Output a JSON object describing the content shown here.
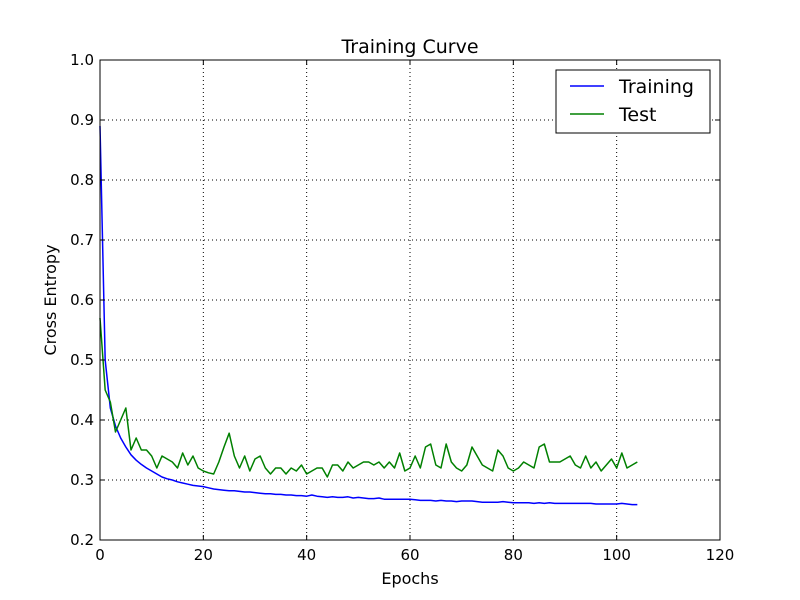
{
  "chart_data": {
    "type": "line",
    "title": "Training Curve",
    "xlabel": "Epochs",
    "ylabel": "Cross Entropy",
    "xlim": [
      0,
      120
    ],
    "ylim": [
      0.2,
      1.0
    ],
    "xticks": [
      0,
      20,
      40,
      60,
      80,
      100,
      120
    ],
    "yticks": [
      0.2,
      0.3,
      0.4,
      0.5,
      0.6,
      0.7,
      0.8,
      0.9,
      1.0
    ],
    "x_tick_labels": [
      "0",
      "20",
      "40",
      "60",
      "80",
      "100",
      "120"
    ],
    "y_tick_labels": [
      "0.2",
      "0.3",
      "0.4",
      "0.5",
      "0.6",
      "0.7",
      "0.8",
      "0.9",
      "1.0"
    ],
    "grid": true,
    "legend_position": "top-right",
    "series": [
      {
        "name": "Training",
        "color": "#0000ff",
        "x": [
          0,
          1,
          2,
          3,
          4,
          5,
          6,
          7,
          8,
          9,
          10,
          11,
          12,
          13,
          14,
          15,
          16,
          17,
          18,
          19,
          20,
          21,
          22,
          23,
          24,
          25,
          26,
          27,
          28,
          29,
          30,
          31,
          32,
          33,
          34,
          35,
          36,
          37,
          38,
          39,
          40,
          41,
          42,
          43,
          44,
          45,
          46,
          47,
          48,
          49,
          50,
          51,
          52,
          53,
          54,
          55,
          56,
          57,
          58,
          59,
          60,
          61,
          62,
          63,
          64,
          65,
          66,
          67,
          68,
          69,
          70,
          71,
          72,
          73,
          74,
          75,
          76,
          77,
          78,
          79,
          80,
          81,
          82,
          83,
          84,
          85,
          86,
          87,
          88,
          89,
          90,
          91,
          92,
          93,
          94,
          95,
          96,
          97,
          98,
          99,
          100,
          101,
          102,
          103,
          104
        ],
        "y": [
          0.89,
          0.5,
          0.42,
          0.39,
          0.37,
          0.355,
          0.342,
          0.333,
          0.326,
          0.32,
          0.315,
          0.31,
          0.305,
          0.302,
          0.3,
          0.297,
          0.295,
          0.293,
          0.291,
          0.29,
          0.289,
          0.287,
          0.285,
          0.284,
          0.283,
          0.282,
          0.282,
          0.281,
          0.28,
          0.28,
          0.279,
          0.278,
          0.277,
          0.277,
          0.276,
          0.276,
          0.275,
          0.275,
          0.274,
          0.274,
          0.273,
          0.275,
          0.273,
          0.272,
          0.271,
          0.272,
          0.271,
          0.271,
          0.272,
          0.27,
          0.271,
          0.27,
          0.269,
          0.269,
          0.27,
          0.268,
          0.268,
          0.268,
          0.268,
          0.268,
          0.268,
          0.267,
          0.266,
          0.266,
          0.266,
          0.265,
          0.266,
          0.265,
          0.265,
          0.264,
          0.265,
          0.265,
          0.265,
          0.264,
          0.263,
          0.263,
          0.263,
          0.263,
          0.264,
          0.263,
          0.262,
          0.262,
          0.262,
          0.262,
          0.261,
          0.262,
          0.261,
          0.262,
          0.261,
          0.261,
          0.261,
          0.261,
          0.261,
          0.261,
          0.261,
          0.261,
          0.26,
          0.26,
          0.26,
          0.26,
          0.26,
          0.261,
          0.26,
          0.259,
          0.259
        ]
      },
      {
        "name": "Test",
        "color": "#008000",
        "x": [
          0,
          1,
          2,
          3,
          4,
          5,
          6,
          7,
          8,
          9,
          10,
          11,
          12,
          13,
          14,
          15,
          16,
          17,
          18,
          19,
          20,
          21,
          22,
          23,
          24,
          25,
          26,
          27,
          28,
          29,
          30,
          31,
          32,
          33,
          34,
          35,
          36,
          37,
          38,
          39,
          40,
          41,
          42,
          43,
          44,
          45,
          46,
          47,
          48,
          49,
          50,
          51,
          52,
          53,
          54,
          55,
          56,
          57,
          58,
          59,
          60,
          61,
          62,
          63,
          64,
          65,
          66,
          67,
          68,
          69,
          70,
          71,
          72,
          73,
          74,
          75,
          76,
          77,
          78,
          79,
          80,
          81,
          82,
          83,
          84,
          85,
          86,
          87,
          88,
          89,
          90,
          91,
          92,
          93,
          94,
          95,
          96,
          97,
          98,
          99,
          100,
          101,
          102,
          103,
          104
        ],
        "y": [
          0.57,
          0.45,
          0.43,
          0.38,
          0.4,
          0.42,
          0.35,
          0.37,
          0.35,
          0.35,
          0.34,
          0.32,
          0.34,
          0.335,
          0.33,
          0.32,
          0.345,
          0.325,
          0.34,
          0.32,
          0.315,
          0.312,
          0.31,
          0.33,
          0.355,
          0.378,
          0.34,
          0.32,
          0.34,
          0.315,
          0.335,
          0.34,
          0.32,
          0.31,
          0.32,
          0.32,
          0.31,
          0.32,
          0.315,
          0.325,
          0.31,
          0.315,
          0.32,
          0.32,
          0.305,
          0.325,
          0.325,
          0.315,
          0.33,
          0.32,
          0.325,
          0.33,
          0.33,
          0.325,
          0.33,
          0.32,
          0.33,
          0.32,
          0.345,
          0.315,
          0.32,
          0.34,
          0.32,
          0.355,
          0.36,
          0.325,
          0.32,
          0.36,
          0.33,
          0.32,
          0.315,
          0.325,
          0.355,
          0.34,
          0.325,
          0.32,
          0.315,
          0.35,
          0.34,
          0.32,
          0.315,
          0.32,
          0.33,
          0.325,
          0.32,
          0.355,
          0.36,
          0.33,
          0.33,
          0.33,
          0.335,
          0.34,
          0.325,
          0.32,
          0.34,
          0.32,
          0.33,
          0.315,
          0.325,
          0.335,
          0.32,
          0.345,
          0.32,
          0.325,
          0.33
        ]
      }
    ]
  }
}
